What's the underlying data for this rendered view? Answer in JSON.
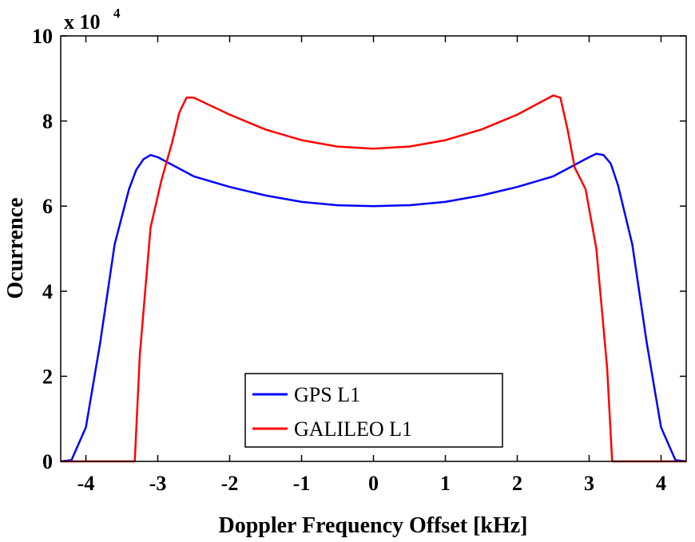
{
  "chart_data": {
    "type": "line",
    "title": "",
    "xlabel": "Doppler Frequency Offset [kHz]",
    "ylabel": "Ocurrence",
    "xlim": [
      -4.35,
      4.35
    ],
    "ylim": [
      0,
      100000
    ],
    "y_multiplier_label": "x 10",
    "y_multiplier_exponent": "4",
    "x_ticks": [
      -4,
      -3,
      -2,
      -1,
      0,
      1,
      2,
      3,
      4
    ],
    "x_tick_labels": [
      "-4",
      "-3",
      "-2",
      "-1",
      "0",
      "1",
      "2",
      "3",
      "4"
    ],
    "y_ticks": [
      0,
      20000,
      40000,
      60000,
      80000,
      100000
    ],
    "y_tick_labels": [
      "0",
      "2",
      "4",
      "6",
      "8",
      "10"
    ],
    "grid": false,
    "legend": "bottom-center",
    "series": [
      {
        "name": "GPS L1",
        "color": "#0000ff",
        "x": [
          -4.35,
          -4.2,
          -4.0,
          -3.8,
          -3.6,
          -3.4,
          -3.3,
          -3.2,
          -3.1,
          -3.0,
          -2.5,
          -2.0,
          -1.5,
          -1.0,
          -0.5,
          0.0,
          0.5,
          1.0,
          1.5,
          2.0,
          2.5,
          3.0,
          3.1,
          3.2,
          3.3,
          3.4,
          3.6,
          3.8,
          4.0,
          4.2,
          4.35
        ],
        "y": [
          0,
          300,
          8000,
          28000,
          51000,
          64000,
          68500,
          71000,
          72000,
          71500,
          67000,
          64500,
          62500,
          61000,
          60200,
          60000,
          60200,
          61000,
          62500,
          64500,
          67000,
          71500,
          72300,
          72000,
          70000,
          65000,
          51000,
          28000,
          8000,
          300,
          0
        ]
      },
      {
        "name": "GALILEO L1",
        "color": "#ff0000",
        "x": [
          -4.35,
          -3.32,
          -3.25,
          -3.1,
          -2.95,
          -2.8,
          -2.7,
          -2.6,
          -2.5,
          -2.0,
          -1.5,
          -1.0,
          -0.5,
          0.0,
          0.5,
          1.0,
          1.5,
          2.0,
          2.5,
          2.6,
          2.7,
          2.8,
          2.95,
          3.1,
          3.25,
          3.32,
          4.35
        ],
        "y": [
          0,
          0,
          25000,
          55000,
          66000,
          75000,
          82000,
          85500,
          85500,
          81500,
          78000,
          75500,
          74000,
          73500,
          74000,
          75500,
          78000,
          81500,
          86000,
          85500,
          78000,
          69000,
          64000,
          50000,
          22000,
          0,
          0
        ]
      }
    ]
  }
}
